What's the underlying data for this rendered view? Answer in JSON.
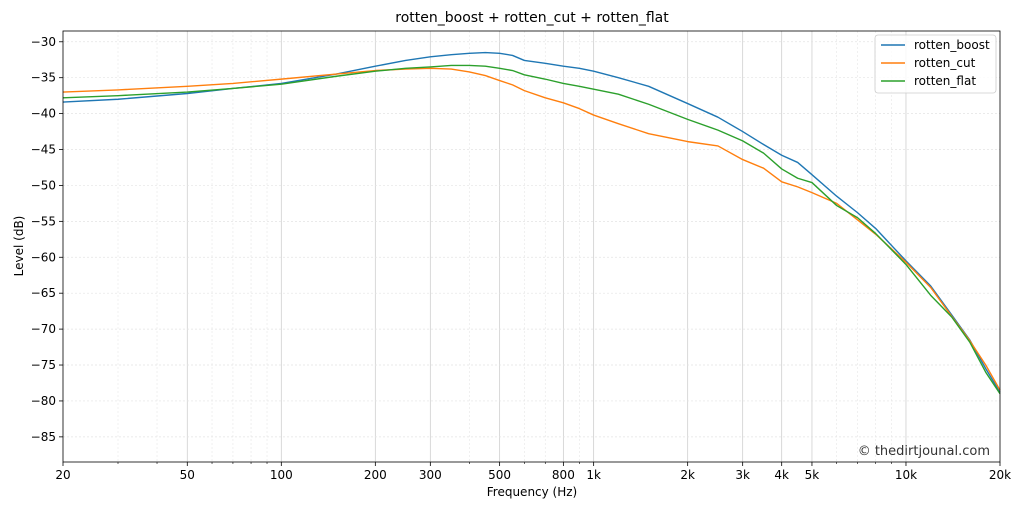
{
  "chart_data": {
    "type": "line",
    "title": "rotten_boost + rotten_cut + rotten_flat",
    "xlabel": "Frequency (Hz)",
    "ylabel": "Level (dB)",
    "xscale": "log",
    "xlim": [
      20,
      20000
    ],
    "ylim": [
      -88.5,
      -28.5
    ],
    "x_ticks": [
      20,
      50,
      100,
      200,
      300,
      500,
      800,
      1000,
      2000,
      3000,
      4000,
      5000,
      10000,
      20000
    ],
    "x_tick_labels": [
      "20",
      "50",
      "100",
      "200",
      "300",
      "500",
      "800",
      "1k",
      "2k",
      "3k",
      "4k",
      "5k",
      "10k",
      "20k"
    ],
    "y_ticks": [
      -30,
      -35,
      -40,
      -45,
      -50,
      -55,
      -60,
      -65,
      -70,
      -75,
      -80,
      -85
    ],
    "y_tick_labels": [
      "−30",
      "−35",
      "−40",
      "−45",
      "−50",
      "−55",
      "−60",
      "−65",
      "−70",
      "−75",
      "−80",
      "−85"
    ],
    "grid": true,
    "legend_position": "top-right",
    "series": [
      {
        "name": "rotten_boost",
        "color": "#1f77b4",
        "points": [
          [
            20,
            -38.4
          ],
          [
            30,
            -38.0
          ],
          [
            50,
            -37.2
          ],
          [
            70,
            -36.5
          ],
          [
            100,
            -35.8
          ],
          [
            150,
            -34.5
          ],
          [
            200,
            -33.4
          ],
          [
            250,
            -32.6
          ],
          [
            300,
            -32.1
          ],
          [
            350,
            -31.8
          ],
          [
            400,
            -31.6
          ],
          [
            450,
            -31.5
          ],
          [
            500,
            -31.6
          ],
          [
            550,
            -31.9
          ],
          [
            600,
            -32.6
          ],
          [
            700,
            -33.0
          ],
          [
            800,
            -33.4
          ],
          [
            900,
            -33.7
          ],
          [
            1000,
            -34.1
          ],
          [
            1200,
            -35.0
          ],
          [
            1500,
            -36.2
          ],
          [
            2000,
            -38.6
          ],
          [
            2500,
            -40.5
          ],
          [
            3000,
            -42.5
          ],
          [
            3500,
            -44.3
          ],
          [
            4000,
            -45.8
          ],
          [
            4500,
            -46.8
          ],
          [
            5000,
            -48.5
          ],
          [
            6000,
            -51.5
          ],
          [
            7000,
            -53.8
          ],
          [
            8000,
            -56.0
          ],
          [
            10000,
            -60.5
          ],
          [
            12000,
            -64.0
          ],
          [
            14000,
            -68.0
          ],
          [
            16000,
            -71.5
          ],
          [
            18000,
            -75.5
          ],
          [
            20000,
            -78.8
          ]
        ]
      },
      {
        "name": "rotten_cut",
        "color": "#ff7f0e",
        "points": [
          [
            20,
            -37.0
          ],
          [
            30,
            -36.7
          ],
          [
            50,
            -36.2
          ],
          [
            70,
            -35.8
          ],
          [
            100,
            -35.2
          ],
          [
            150,
            -34.5
          ],
          [
            200,
            -34.0
          ],
          [
            250,
            -33.8
          ],
          [
            300,
            -33.7
          ],
          [
            350,
            -33.8
          ],
          [
            400,
            -34.2
          ],
          [
            450,
            -34.7
          ],
          [
            500,
            -35.4
          ],
          [
            550,
            -36.0
          ],
          [
            600,
            -36.8
          ],
          [
            700,
            -37.8
          ],
          [
            800,
            -38.5
          ],
          [
            900,
            -39.3
          ],
          [
            1000,
            -40.2
          ],
          [
            1200,
            -41.4
          ],
          [
            1500,
            -42.8
          ],
          [
            2000,
            -43.9
          ],
          [
            2500,
            -44.5
          ],
          [
            3000,
            -46.4
          ],
          [
            3500,
            -47.6
          ],
          [
            4000,
            -49.5
          ],
          [
            4500,
            -50.2
          ],
          [
            5000,
            -51.0
          ],
          [
            6000,
            -52.5
          ],
          [
            7000,
            -54.8
          ],
          [
            8000,
            -56.8
          ],
          [
            10000,
            -60.7
          ],
          [
            12000,
            -64.2
          ],
          [
            14000,
            -68.2
          ],
          [
            16000,
            -71.6
          ],
          [
            18000,
            -75.0
          ],
          [
            20000,
            -78.5
          ]
        ]
      },
      {
        "name": "rotten_flat",
        "color": "#2ca02c",
        "points": [
          [
            20,
            -37.8
          ],
          [
            30,
            -37.5
          ],
          [
            50,
            -37.0
          ],
          [
            70,
            -36.5
          ],
          [
            100,
            -35.9
          ],
          [
            150,
            -34.8
          ],
          [
            200,
            -34.1
          ],
          [
            250,
            -33.7
          ],
          [
            300,
            -33.5
          ],
          [
            350,
            -33.3
          ],
          [
            400,
            -33.3
          ],
          [
            450,
            -33.4
          ],
          [
            500,
            -33.7
          ],
          [
            550,
            -34.0
          ],
          [
            600,
            -34.6
          ],
          [
            700,
            -35.2
          ],
          [
            800,
            -35.8
          ],
          [
            900,
            -36.2
          ],
          [
            1000,
            -36.6
          ],
          [
            1200,
            -37.3
          ],
          [
            1500,
            -38.7
          ],
          [
            2000,
            -40.8
          ],
          [
            2500,
            -42.3
          ],
          [
            3000,
            -43.8
          ],
          [
            3500,
            -45.5
          ],
          [
            4000,
            -47.7
          ],
          [
            4500,
            -49.0
          ],
          [
            5000,
            -49.6
          ],
          [
            6000,
            -52.8
          ],
          [
            7000,
            -54.5
          ],
          [
            8000,
            -56.7
          ],
          [
            10000,
            -61.0
          ],
          [
            12000,
            -65.3
          ],
          [
            14000,
            -68.3
          ],
          [
            16000,
            -71.8
          ],
          [
            18000,
            -76.0
          ],
          [
            20000,
            -79.0
          ]
        ]
      }
    ]
  },
  "watermark": "© thedirtjounal.com"
}
